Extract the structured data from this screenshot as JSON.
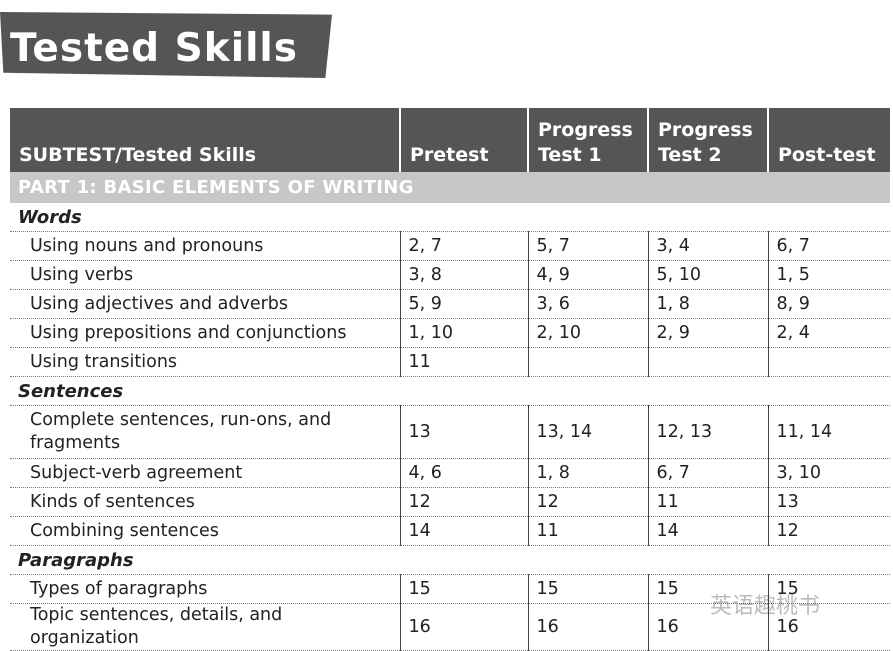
{
  "title": "Tested Skills",
  "table": {
    "headers": [
      "SUBTEST/Tested Skills",
      "Pretest",
      "Progress Test 1",
      "Progress Test 2",
      "Post-test"
    ],
    "part": "PART 1: BASIC ELEMENTS OF WRITING",
    "sections": [
      {
        "name": "Words",
        "rows": [
          {
            "skill": "Using nouns and pronouns",
            "pretest": "2, 7",
            "progress1": "5, 7",
            "progress2": "3, 4",
            "posttest": "6, 7"
          },
          {
            "skill": "Using verbs",
            "pretest": "3, 8",
            "progress1": "4, 9",
            "progress2": "5, 10",
            "posttest": "1, 5"
          },
          {
            "skill": "Using adjectives and adverbs",
            "pretest": "5, 9",
            "progress1": "3, 6",
            "progress2": "1, 8",
            "posttest": "8, 9"
          },
          {
            "skill": "Using prepositions and conjunctions",
            "pretest": "1, 10",
            "progress1": "2, 10",
            "progress2": "2, 9",
            "posttest": "2, 4"
          },
          {
            "skill": "Using transitions",
            "pretest": "11",
            "progress1": "",
            "progress2": "",
            "posttest": ""
          }
        ]
      },
      {
        "name": "Sentences",
        "rows": [
          {
            "skill": "Complete sentences, run-ons, and fragments",
            "pretest": "13",
            "progress1": "13, 14",
            "progress2": "12, 13",
            "posttest": "11, 14"
          },
          {
            "skill": "Subject-verb agreement",
            "pretest": "4, 6",
            "progress1": "1, 8",
            "progress2": "6, 7",
            "posttest": "3, 10"
          },
          {
            "skill": "Kinds of sentences",
            "pretest": "12",
            "progress1": "12",
            "progress2": "11",
            "posttest": "13"
          },
          {
            "skill": "Combining sentences",
            "pretest": "14",
            "progress1": "11",
            "progress2": "14",
            "posttest": "12"
          }
        ]
      },
      {
        "name": "Paragraphs",
        "rows": [
          {
            "skill": "Types of paragraphs",
            "pretest": "15",
            "progress1": "15",
            "progress2": "15",
            "posttest": "15"
          },
          {
            "skill": "Topic sentences, details, and organization",
            "pretest": "16",
            "progress1": "16",
            "progress2": "16",
            "posttest": "16"
          }
        ]
      }
    ]
  },
  "watermark": "英语趣桃书"
}
